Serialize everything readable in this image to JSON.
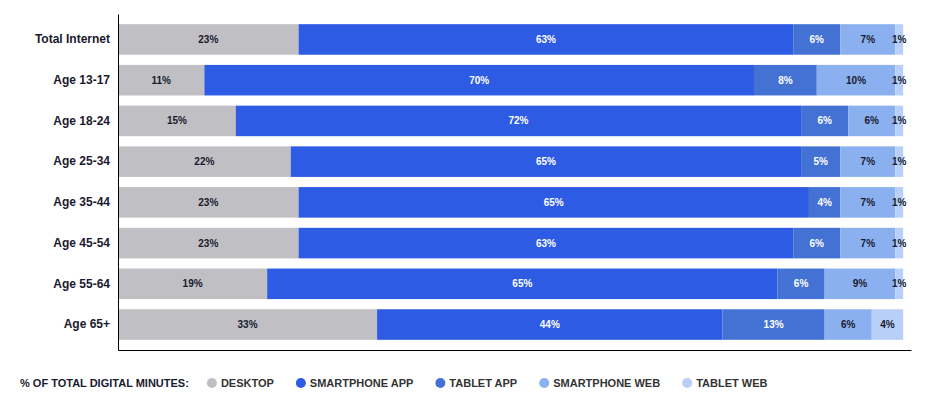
{
  "chart_data": {
    "type": "bar",
    "orientation": "horizontal",
    "stacked": true,
    "categories": [
      "Total Internet",
      "Age 13-17",
      "Age 18-24",
      "Age 25-34",
      "Age 35-44",
      "Age 45-54",
      "Age 55-64",
      "Age 65+"
    ],
    "series": [
      {
        "name": "DESKTOP",
        "color": "#c0bfc4",
        "values": [
          23,
          11,
          15,
          22,
          23,
          23,
          19,
          33
        ],
        "value_labels": [
          "23%",
          "11%",
          "15%",
          "22%",
          "23%",
          "23%",
          "19%",
          "33%"
        ]
      },
      {
        "name": "SMARTPHONE APP",
        "color": "#2d5be3",
        "values": [
          63,
          70,
          72,
          65,
          65,
          63,
          65,
          44
        ],
        "value_labels": [
          "63%",
          "70%",
          "72%",
          "65%",
          "65%",
          "63%",
          "65%",
          "44%"
        ]
      },
      {
        "name": "TABLET APP",
        "color": "#4472d4",
        "values": [
          6,
          8,
          6,
          5,
          4,
          6,
          6,
          13
        ],
        "value_labels": [
          "6%",
          "8%",
          "6%",
          "5%",
          "4%",
          "6%",
          "6%",
          "13%"
        ]
      },
      {
        "name": "SMARTPHONE WEB",
        "color": "#8ab0f0",
        "values": [
          7,
          10,
          6,
          7,
          7,
          7,
          9,
          6
        ],
        "value_labels": [
          "7%",
          "10%",
          "6%",
          "7%",
          "7%",
          "7%",
          "9%",
          "6%"
        ]
      },
      {
        "name": "TABLET WEB",
        "color": "#b8d0f8",
        "values": [
          1,
          1,
          1,
          1,
          1,
          1,
          1,
          4
        ],
        "value_labels": [
          "1%",
          "1%",
          "1%",
          "1%",
          "1%",
          "1%",
          "1%",
          "4%"
        ]
      }
    ],
    "legend_title": "% OF TOTAL DIGITAL MINUTES:",
    "xlim": [
      0,
      101
    ],
    "grid": false,
    "legend": "bottom",
    "data_labels": true,
    "tick_labels": "y"
  }
}
